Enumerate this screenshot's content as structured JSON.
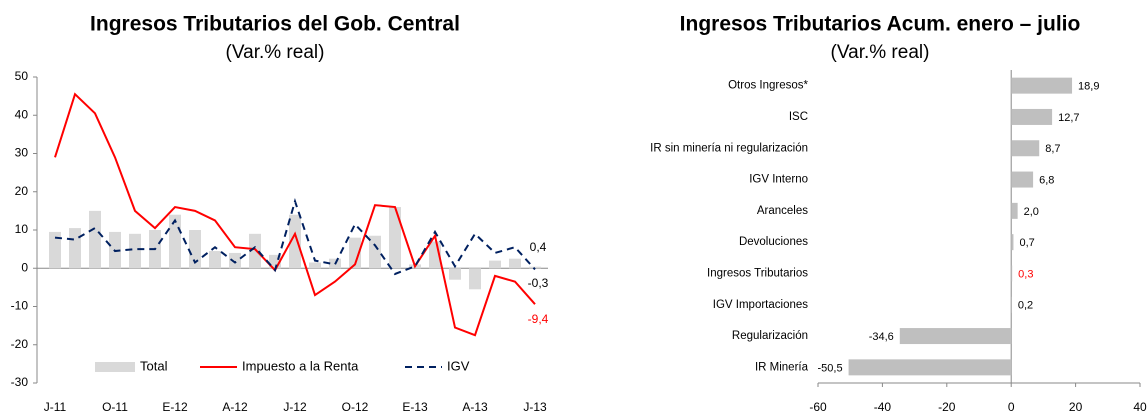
{
  "chart_data": [
    {
      "type": "combo",
      "title": "Ingresos Tributarios del Gob. Central",
      "subtitle": "(Var.% real)",
      "categories": [
        "J-11",
        null,
        null,
        "O-11",
        null,
        null,
        "E-12",
        null,
        null,
        "A-12",
        null,
        null,
        "J-12",
        null,
        null,
        "O-12",
        null,
        null,
        "E-13",
        null,
        null,
        "A-13",
        null,
        null,
        "J-13"
      ],
      "ylim": [
        -30,
        50
      ],
      "yticks": [
        -30,
        -20,
        -10,
        0,
        10,
        20,
        30,
        40,
        50
      ],
      "legend": "bottom",
      "series": [
        {
          "name": "Total",
          "kind": "bar",
          "color": "#d9d9d9",
          "values": [
            9.5,
            10.5,
            15,
            9.5,
            9,
            10,
            14,
            10,
            4.5,
            4,
            9,
            3.5,
            14,
            1.5,
            2.5,
            8,
            8.5,
            16,
            1,
            7,
            -3,
            -5.5,
            2,
            2.5,
            0.4
          ],
          "value_labels": [
            null,
            null,
            null,
            null,
            null,
            null,
            null,
            null,
            null,
            null,
            null,
            null,
            null,
            null,
            null,
            null,
            null,
            null,
            null,
            null,
            null,
            null,
            null,
            null,
            "0,4"
          ]
        },
        {
          "name": "Impuesto a la Renta",
          "kind": "line",
          "color": "#ff0000",
          "values": [
            29,
            45.5,
            40.5,
            29,
            15,
            10.5,
            16,
            15,
            12.5,
            5.5,
            5,
            -0.5,
            9,
            -7,
            -3.5,
            1,
            16.5,
            16,
            0.5,
            8.5,
            -15.5,
            -17.5,
            -2,
            -3.5,
            -9.4
          ],
          "value_labels": [
            null,
            null,
            null,
            null,
            null,
            null,
            null,
            null,
            null,
            null,
            null,
            null,
            null,
            null,
            null,
            null,
            null,
            null,
            null,
            null,
            null,
            null,
            null,
            null,
            "-9,4"
          ]
        },
        {
          "name": "IGV",
          "kind": "dashed",
          "color": "#002060",
          "values": [
            8,
            7.5,
            10.5,
            4.5,
            5,
            5,
            12.5,
            1.5,
            5.5,
            1.5,
            5.5,
            -0.5,
            17.5,
            2,
            1,
            11.5,
            6,
            -1.5,
            0.5,
            9.5,
            0.5,
            9,
            4,
            5.5,
            -0.3
          ],
          "value_labels": [
            null,
            null,
            null,
            null,
            null,
            null,
            null,
            null,
            null,
            null,
            null,
            null,
            null,
            null,
            null,
            null,
            null,
            null,
            null,
            null,
            null,
            null,
            null,
            null,
            "-0,3"
          ]
        }
      ]
    },
    {
      "type": "hbar",
      "title": "Ingresos Tributarios Acum. enero – julio",
      "subtitle": "(Var.% real)",
      "categories": [
        "Otros Ingresos*",
        "ISC",
        "IR sin minería ni regularización",
        "IGV Interno",
        "Aranceles",
        "Devoluciones",
        "Ingresos Tributarios",
        "IGV Importaciones",
        "Regularización",
        "IR Minería"
      ],
      "values": [
        18.9,
        12.7,
        8.7,
        6.8,
        2.0,
        0.7,
        0.3,
        0.2,
        -34.6,
        -50.5
      ],
      "value_labels": [
        "18,9",
        "12,7",
        "8,7",
        "6,8",
        "2,0",
        "0,7",
        "0,3",
        "0,2",
        "-34,6",
        "-50,5"
      ],
      "label_colors": [
        "#000000",
        "#000000",
        "#000000",
        "#000000",
        "#000000",
        "#000000",
        "#ff0000",
        "#000000",
        "#000000",
        "#000000"
      ],
      "color": "#bfbfbf",
      "xlim": [
        -60,
        40
      ],
      "xticks": [
        -60,
        -40,
        -20,
        0,
        20,
        40
      ]
    }
  ]
}
